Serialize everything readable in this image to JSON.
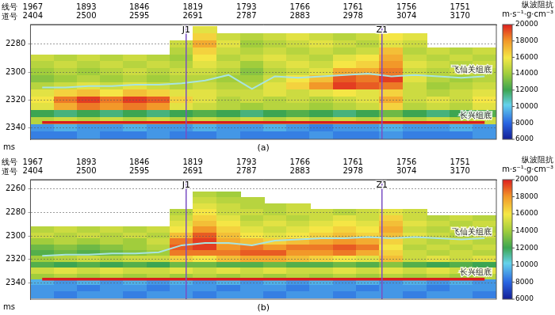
{
  "chart_data": [
    {
      "type": "heatmap",
      "title": "(a)",
      "xlabel": "线号\n道号",
      "ylabel": "ms",
      "xlim": [
        2400,
        3235
      ],
      "xticks": [
        {
          "value": 2404,
          "label": "1967\n2404"
        },
        {
          "value": 2500,
          "label": "1893\n2500"
        },
        {
          "value": 2595,
          "label": "1846\n2595"
        },
        {
          "value": 2691,
          "label": "1819\n2691"
        },
        {
          "value": 2787,
          "label": "1793\n2787"
        },
        {
          "value": 2883,
          "label": "1766\n2883"
        },
        {
          "value": 2978,
          "label": "1761\n2978"
        },
        {
          "value": 3074,
          "label": "1756\n3074"
        },
        {
          "value": 3170,
          "label": "1751\n3170"
        }
      ],
      "ylim": [
        2266,
        2348
      ],
      "yticks": [
        2280,
        2300,
        2320,
        2340
      ],
      "grid": true,
      "colorbar": {
        "title": "纵波阻抗",
        "unit": "m·s⁻¹·g·cm⁻³",
        "range": [
          6000,
          20000
        ],
        "ticks": [
          6000,
          8000,
          10000,
          12000,
          14000,
          16000,
          18000,
          20000
        ]
      },
      "x": [
        2421,
        2463,
        2504,
        2546,
        2588,
        2630,
        2671,
        2713,
        2755,
        2797,
        2838,
        2880,
        2922,
        2964,
        3005,
        3047,
        3089,
        3131,
        3172,
        3214
      ],
      "y": [
        2270,
        2275,
        2280,
        2285,
        2290,
        2295,
        2300,
        2305,
        2310,
        2315,
        2320,
        2325,
        2330,
        2335,
        2340,
        2345
      ],
      "cells": [
        [
          null,
          null,
          null,
          null,
          null,
          null,
          null,
          15500,
          null,
          null,
          null,
          null,
          null,
          null,
          null,
          null,
          null,
          null,
          null,
          null
        ],
        [
          null,
          null,
          null,
          null,
          null,
          null,
          null,
          16500,
          15000,
          14500,
          15000,
          15500,
          15000,
          14500,
          15000,
          16000,
          15500,
          null,
          null,
          null
        ],
        [
          null,
          null,
          null,
          null,
          null,
          null,
          15000,
          17500,
          15500,
          14000,
          14500,
          15000,
          15500,
          15000,
          14500,
          15500,
          15000,
          null,
          null,
          null
        ],
        [
          null,
          null,
          null,
          null,
          null,
          null,
          14500,
          16500,
          15000,
          14500,
          15000,
          14500,
          15000,
          14500,
          15000,
          17000,
          14500,
          15000,
          14500,
          15000
        ],
        [
          15000,
          14500,
          15000,
          14500,
          15000,
          14500,
          14000,
          16000,
          14500,
          15000,
          15500,
          15000,
          14500,
          15500,
          16000,
          17500,
          15000,
          14500,
          15000,
          14500
        ],
        [
          14500,
          15000,
          14500,
          15000,
          14500,
          15000,
          14500,
          15500,
          15000,
          14000,
          15000,
          15500,
          15000,
          16000,
          16500,
          18000,
          15500,
          15000,
          14500,
          15000
        ],
        [
          14000,
          14500,
          14000,
          14500,
          15000,
          14500,
          15000,
          15000,
          14500,
          13500,
          14500,
          15000,
          15500,
          17500,
          17500,
          18500,
          15000,
          14500,
          15000,
          14500
        ],
        [
          13500,
          14000,
          14500,
          14000,
          14500,
          14000,
          14500,
          14500,
          14000,
          14000,
          15000,
          16000,
          17000,
          19000,
          18500,
          19500,
          15500,
          14500,
          14000,
          14500
        ],
        [
          14500,
          15000,
          15500,
          15000,
          15500,
          15000,
          14500,
          15000,
          14500,
          14500,
          15500,
          16500,
          18000,
          19500,
          19000,
          18500,
          15000,
          14000,
          14500,
          15000
        ],
        [
          15500,
          16500,
          17000,
          16000,
          17000,
          16500,
          15500,
          15500,
          15000,
          15000,
          15500,
          15000,
          15500,
          16000,
          15500,
          16500,
          15000,
          14500,
          15000,
          15500
        ],
        [
          16000,
          18500,
          19500,
          18500,
          19500,
          19000,
          16500,
          15500,
          14500,
          15000,
          14500,
          15000,
          14500,
          15000,
          15500,
          17500,
          15000,
          15500,
          15000,
          16000
        ],
        [
          15500,
          17500,
          18500,
          18000,
          18500,
          18000,
          15500,
          15000,
          14500,
          14000,
          14500,
          14500,
          14000,
          14500,
          15000,
          16500,
          14500,
          15000,
          14500,
          15500
        ],
        [
          12000,
          11500,
          12000,
          11500,
          12000,
          11500,
          12000,
          12500,
          12000,
          11500,
          12000,
          12500,
          12000,
          11500,
          12000,
          13000,
          12000,
          11500,
          12000,
          12500
        ],
        [
          14500,
          15000,
          14500,
          15000,
          14500,
          15000,
          14500,
          15000,
          14500,
          15000,
          14500,
          15000,
          14500,
          15000,
          14500,
          15000,
          14500,
          15000,
          14500,
          15000
        ],
        [
          9000,
          9500,
          9000,
          9000,
          9500,
          9000,
          9000,
          9500,
          9000,
          9000,
          9500,
          9000,
          8500,
          9000,
          9000,
          9500,
          9000,
          9000,
          9500,
          9000
        ],
        [
          8500,
          8500,
          9000,
          8500,
          8500,
          9000,
          8500,
          8500,
          9000,
          8500,
          8500,
          8500,
          9000,
          8500,
          8500,
          9000,
          8500,
          8500,
          8500,
          9000
        ]
      ],
      "series": [
        {
          "name": "飞仙关组底",
          "color": "#a8e4e0",
          "values": [
            2311,
            2311,
            2310,
            2310,
            2309,
            2309,
            2308,
            2306,
            2302,
            2312,
            2303,
            2304,
            2303,
            2302,
            2301,
            2303,
            2302,
            2303,
            2304,
            2303
          ]
        },
        {
          "name": "长兴组底",
          "color": "#d81e1e",
          "values": [
            2336,
            2336,
            2336,
            2336,
            2336,
            2336,
            2336,
            2336,
            2336,
            2336,
            2336,
            2336,
            2336,
            2336,
            2336,
            2336,
            2336,
            2336,
            2336,
            2336
          ]
        }
      ],
      "wells": [
        {
          "name": "J1",
          "x": 2679
        },
        {
          "name": "Z1",
          "x": 3030
        }
      ]
    },
    {
      "type": "heatmap",
      "title": "(b)",
      "xlabel": "线号\n道号",
      "ylabel": "ms",
      "xlim": [
        2400,
        3235
      ],
      "xticks": [
        {
          "value": 2404,
          "label": "1967\n2404"
        },
        {
          "value": 2500,
          "label": "1893\n2500"
        },
        {
          "value": 2595,
          "label": "1846\n2595"
        },
        {
          "value": 2691,
          "label": "1819\n2691"
        },
        {
          "value": 2787,
          "label": "1793\n2787"
        },
        {
          "value": 2883,
          "label": "1766\n2883"
        },
        {
          "value": 2978,
          "label": "1761\n2978"
        },
        {
          "value": 3074,
          "label": "1756\n3074"
        },
        {
          "value": 3170,
          "label": "1751\n3170"
        }
      ],
      "ylim": [
        2252,
        2354
      ],
      "yticks": [
        2260,
        2280,
        2300,
        2320,
        2340
      ],
      "grid": true,
      "colorbar": {
        "title": "纵波阻抗",
        "unit": "m·s⁻¹·g·cm⁻³",
        "range": [
          6000,
          20000
        ],
        "ticks": [
          6000,
          8000,
          10000,
          12000,
          14000,
          16000,
          18000,
          20000
        ]
      },
      "x": [
        2421,
        2463,
        2504,
        2546,
        2588,
        2630,
        2671,
        2713,
        2755,
        2797,
        2838,
        2880,
        2922,
        2964,
        3005,
        3047,
        3089,
        3131,
        3172,
        3214
      ],
      "y": [
        2265,
        2270,
        2275,
        2280,
        2285,
        2290,
        2295,
        2300,
        2305,
        2310,
        2315,
        2320,
        2325,
        2330,
        2335,
        2340,
        2345,
        2350
      ],
      "cells": [
        [
          null,
          null,
          null,
          null,
          null,
          null,
          null,
          14500,
          14000,
          null,
          null,
          null,
          null,
          null,
          null,
          null,
          null,
          null,
          null,
          null
        ],
        [
          null,
          null,
          null,
          null,
          null,
          null,
          null,
          15000,
          14500,
          14500,
          null,
          null,
          null,
          null,
          null,
          null,
          null,
          null,
          null,
          null
        ],
        [
          null,
          null,
          null,
          null,
          null,
          null,
          null,
          15500,
          15000,
          14500,
          14500,
          15000,
          null,
          null,
          null,
          null,
          null,
          null,
          null,
          null
        ],
        [
          null,
          null,
          null,
          null,
          null,
          null,
          14500,
          16000,
          15000,
          15000,
          14500,
          15000,
          15000,
          14500,
          15000,
          15500,
          15000,
          null,
          null,
          null
        ],
        [
          null,
          null,
          null,
          null,
          null,
          null,
          15000,
          16500,
          15500,
          14500,
          15000,
          14500,
          15000,
          15500,
          15000,
          16500,
          15000,
          14500,
          15000,
          14500
        ],
        [
          null,
          null,
          null,
          null,
          null,
          null,
          15500,
          17000,
          16000,
          15000,
          15500,
          15000,
          15500,
          16000,
          15500,
          17000,
          15500,
          15000,
          14500,
          15000
        ],
        [
          14500,
          15000,
          14500,
          15000,
          14500,
          15000,
          16000,
          18000,
          16500,
          15500,
          15000,
          15500,
          16000,
          16500,
          16000,
          17500,
          15000,
          14500,
          15000,
          14500
        ],
        [
          15000,
          14500,
          15000,
          14500,
          15000,
          14500,
          17000,
          19000,
          17000,
          16000,
          15500,
          16000,
          16500,
          17000,
          16500,
          17000,
          15500,
          15000,
          14500,
          15000
        ],
        [
          14000,
          14500,
          14000,
          14500,
          14000,
          15000,
          18500,
          19500,
          17500,
          17000,
          16500,
          17000,
          17500,
          18000,
          17500,
          16500,
          15000,
          14500,
          15000,
          14500
        ],
        [
          13000,
          13500,
          13000,
          13500,
          14000,
          14500,
          19000,
          19500,
          18000,
          18500,
          18000,
          18500,
          18500,
          19000,
          18500,
          16000,
          14500,
          15000,
          14500,
          15000
        ],
        [
          12500,
          13000,
          12500,
          13000,
          13500,
          14000,
          18500,
          18500,
          18500,
          19000,
          19000,
          18000,
          18000,
          18500,
          17500,
          16500,
          15000,
          14500,
          15000,
          14500
        ],
        [
          14000,
          14500,
          15000,
          14500,
          15000,
          15000,
          16500,
          16000,
          17000,
          17500,
          17500,
          17000,
          16500,
          16000,
          15500,
          17000,
          15000,
          15500,
          15000,
          15500
        ],
        [
          12500,
          12000,
          12500,
          12000,
          12500,
          12000,
          13000,
          13000,
          12500,
          12500,
          13000,
          12500,
          12500,
          13000,
          12500,
          13500,
          12500,
          12000,
          12500,
          12000
        ],
        [
          15000,
          15500,
          15000,
          15500,
          15000,
          15000,
          15500,
          15000,
          15500,
          15000,
          15500,
          15000,
          15000,
          15500,
          15000,
          15500,
          15000,
          15500,
          15000,
          15500
        ],
        [
          14000,
          14500,
          14000,
          14500,
          14000,
          14500,
          14000,
          14500,
          14000,
          14500,
          14000,
          14500,
          14000,
          14500,
          14000,
          14500,
          14000,
          14500,
          14000,
          14500
        ],
        [
          9500,
          9000,
          9500,
          9000,
          9500,
          9000,
          9500,
          9000,
          9500,
          9000,
          9500,
          9000,
          9500,
          9000,
          9500,
          9000,
          9500,
          9000,
          9500,
          9000
        ],
        [
          9000,
          9000,
          8500,
          9000,
          9000,
          8500,
          9000,
          9000,
          8500,
          9000,
          9000,
          8500,
          9000,
          9000,
          8500,
          9000,
          9000,
          8500,
          9000,
          9000
        ],
        [
          9000,
          8500,
          9000,
          9000,
          8500,
          9000,
          9000,
          8500,
          9000,
          9000,
          8500,
          9000,
          9000,
          8500,
          9000,
          9000,
          8500,
          9000,
          9000,
          8500
        ]
      ],
      "series": [
        {
          "name": "飞仙关组底",
          "color": "#a8e4e0",
          "values": [
            2317,
            2316,
            2316,
            2315,
            2315,
            2314,
            2308,
            2306,
            2306,
            2308,
            2304,
            2303,
            2302,
            2302,
            2301,
            2302,
            2301,
            2302,
            2303,
            2302
          ]
        },
        {
          "name": "长兴组底",
          "color": "#d81e1e",
          "values": [
            2337,
            2337,
            2337,
            2337,
            2337,
            2337,
            2337,
            2337,
            2337,
            2337,
            2337,
            2337,
            2337,
            2337,
            2337,
            2337,
            2337,
            2337,
            2337,
            2337
          ]
        }
      ],
      "wells": [
        {
          "name": "J1",
          "x": 2679
        },
        {
          "name": "Z1",
          "x": 3030
        }
      ]
    }
  ]
}
